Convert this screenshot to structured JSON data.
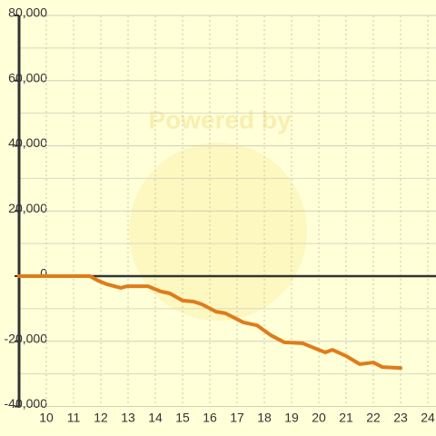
{
  "chart_data": {
    "type": "line",
    "watermark": "Powered by",
    "x": [
      9,
      11.6,
      11.9,
      12.23,
      12.73,
      12.97,
      13.73,
      14.2,
      14.53,
      15.0,
      15.4,
      15.7,
      16.23,
      16.57,
      17.23,
      17.73,
      18.23,
      18.73,
      19.4,
      19.73,
      20.23,
      20.5,
      21.0,
      21.5,
      22.0,
      22.33,
      23.0
    ],
    "series": [
      {
        "color": "#e07b1a",
        "values": [
          0,
          0,
          -1400,
          -2500,
          -3600,
          -3100,
          -3100,
          -4700,
          -5300,
          -7500,
          -7800,
          -8600,
          -10900,
          -11400,
          -14200,
          -15100,
          -18100,
          -20300,
          -20600,
          -21700,
          -23400,
          -22600,
          -24500,
          -27000,
          -26500,
          -27900,
          -28200
        ]
      }
    ],
    "xlim": [
      9,
      24.3
    ],
    "xticks": [
      10,
      11,
      12,
      13,
      14,
      15,
      16,
      17,
      18,
      19,
      20,
      21,
      22,
      23,
      24
    ],
    "ylim": [
      -40000,
      80000
    ],
    "yticks": [
      {
        "value": -40000,
        "label": "-40,000"
      },
      {
        "value": -20000,
        "label": "-20,000"
      },
      0,
      {
        "value": 20000,
        "label": "20,000"
      },
      {
        "value": 40000,
        "label": "40,000"
      },
      {
        "value": 60000,
        "label": "60,000"
      },
      {
        "value": 80000,
        "label": "80,000"
      }
    ],
    "yminor": [
      -30000,
      -10000,
      10000,
      30000,
      50000,
      70000
    ],
    "grid": true
  }
}
